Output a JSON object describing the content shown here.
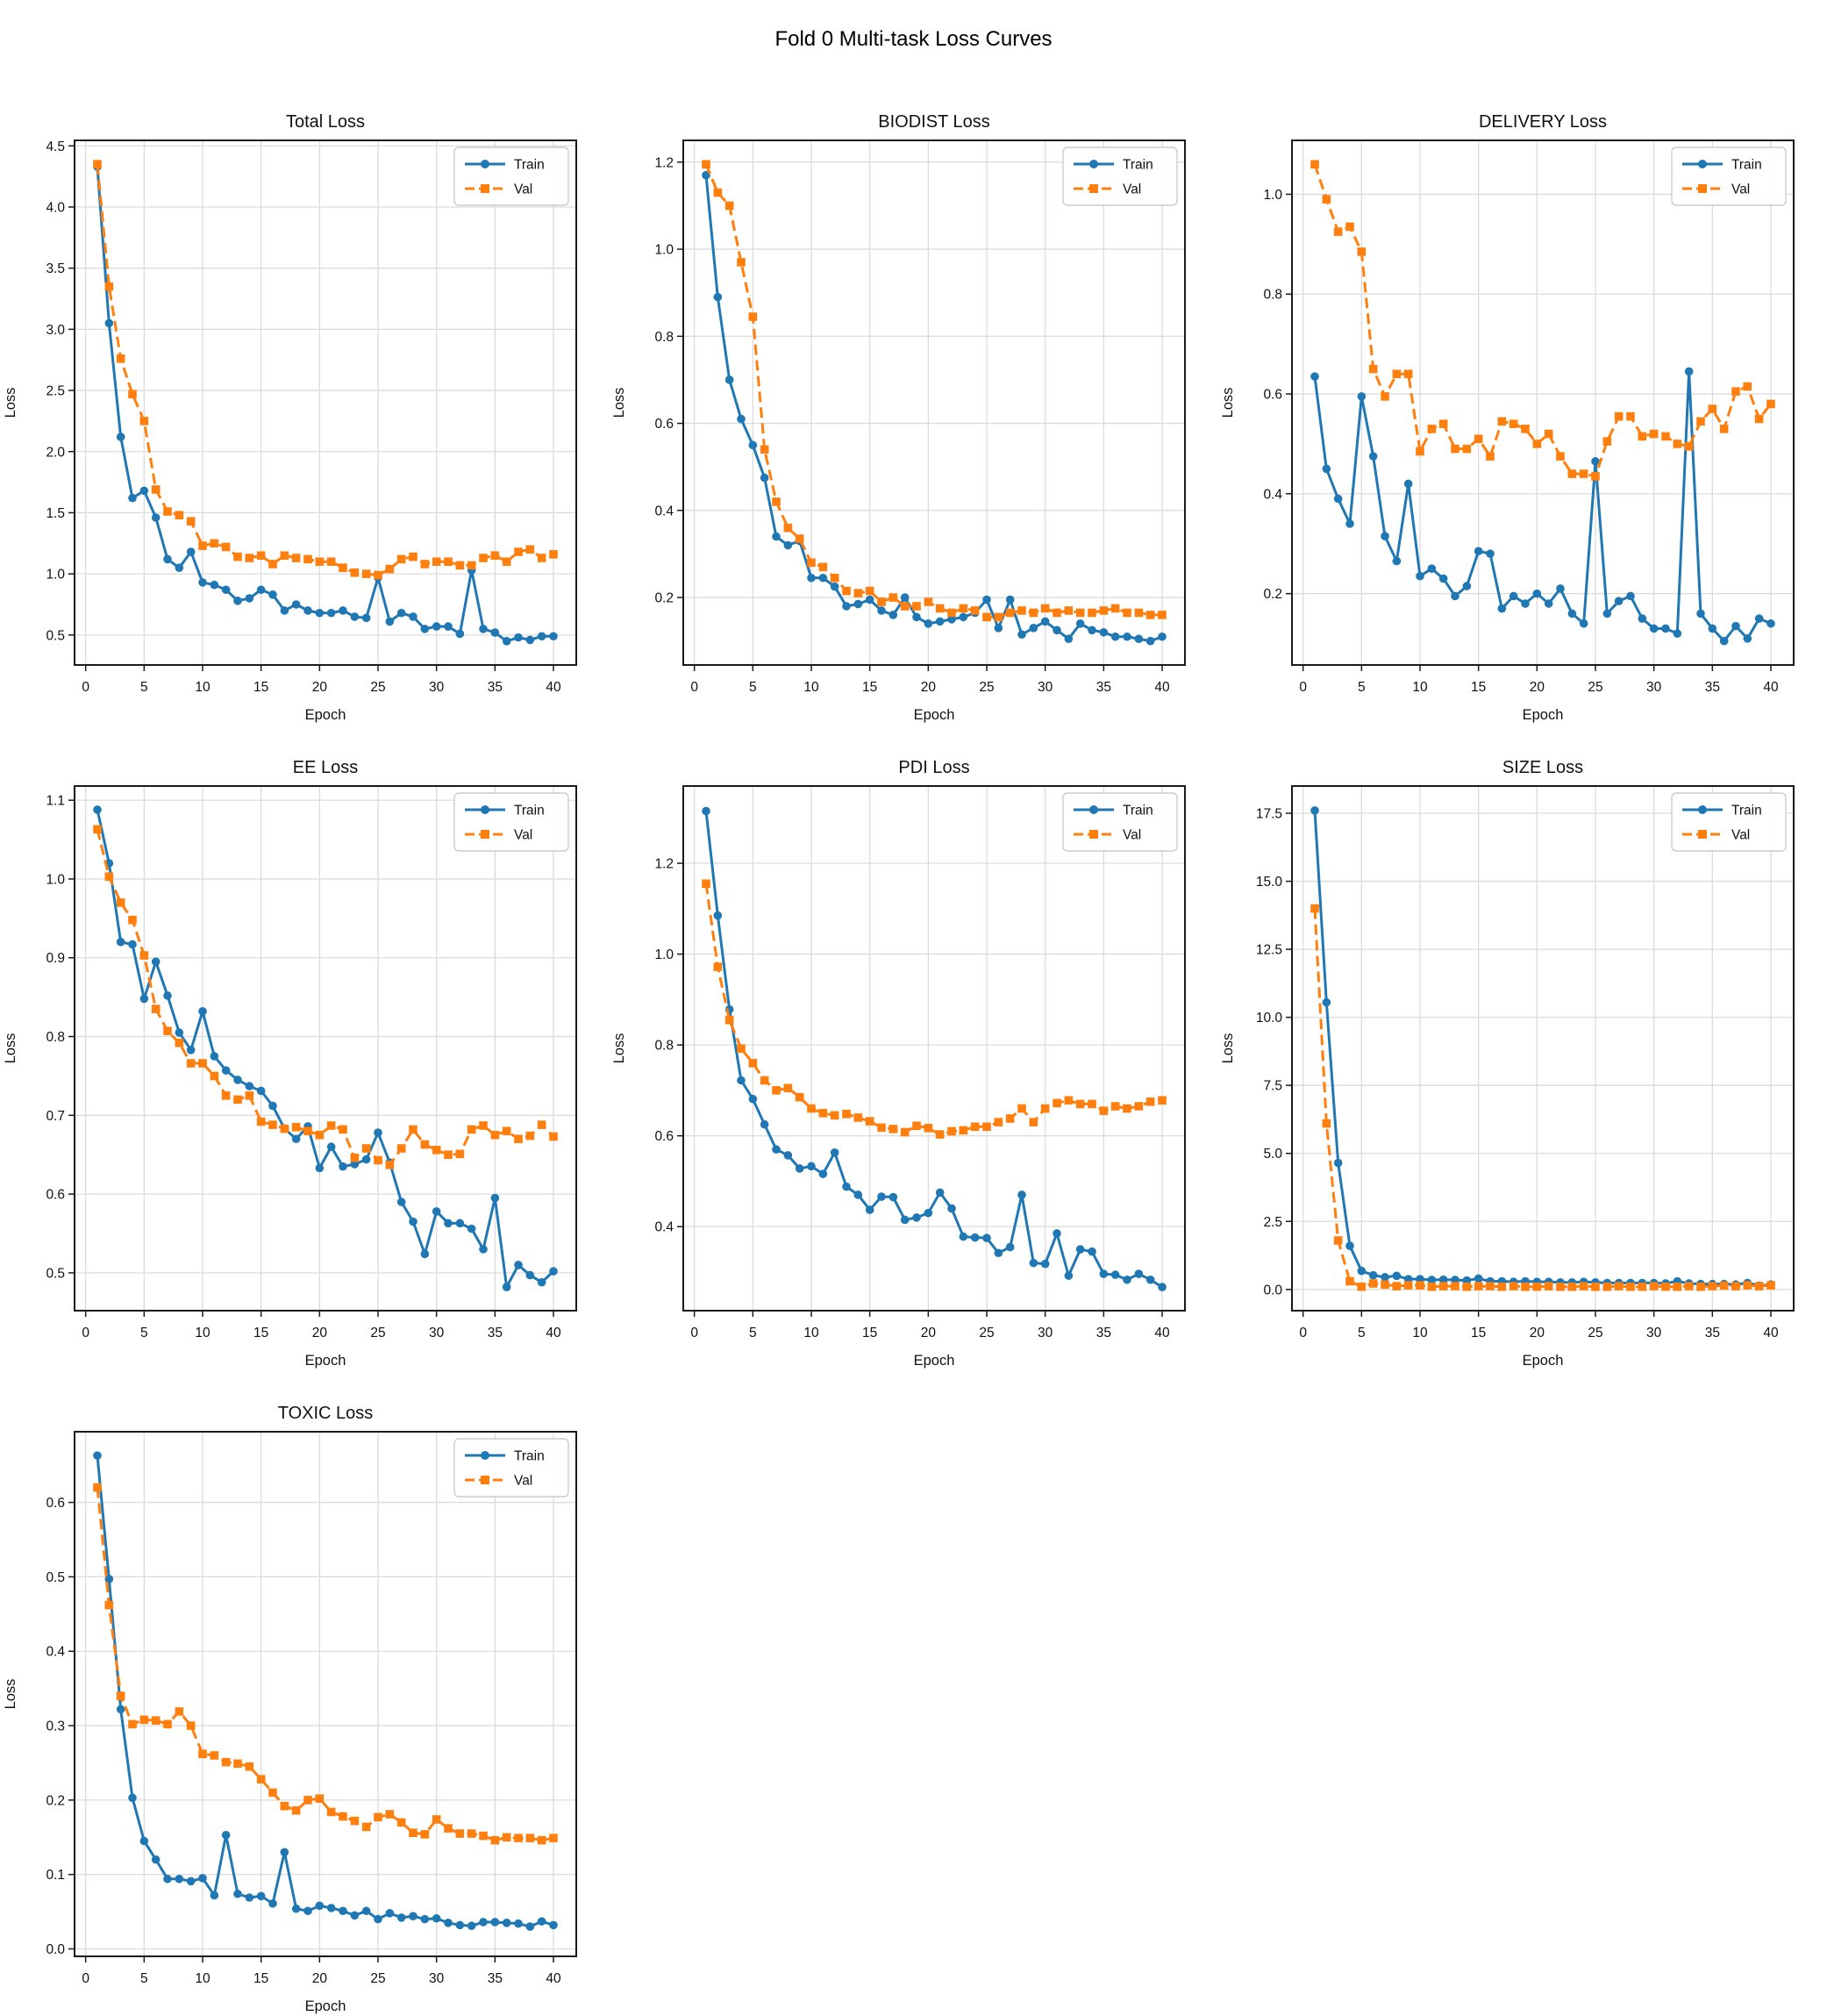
{
  "figure": {
    "suptitle": "Fold 0 Multi-task Loss Curves"
  },
  "colors": {
    "train": "#1f77b4",
    "val": "#ff7f0e",
    "grid": "#dcdcdc",
    "frame": "#1a1a1a"
  },
  "chart_data": {
    "type": "line",
    "x_label": "Epoch",
    "y_label": "Loss",
    "grid": true,
    "x": [
      1,
      2,
      3,
      4,
      5,
      6,
      7,
      8,
      9,
      10,
      11,
      12,
      13,
      14,
      15,
      16,
      17,
      18,
      19,
      20,
      21,
      22,
      23,
      24,
      25,
      26,
      27,
      28,
      29,
      30,
      31,
      32,
      33,
      34,
      35,
      36,
      37,
      38,
      39,
      40
    ],
    "x_ticks": [
      0,
      5,
      10,
      15,
      20,
      25,
      30,
      35,
      40
    ],
    "x_lim": [
      -0.95,
      41.95
    ],
    "legend": {
      "position": "upper right",
      "entries": [
        {
          "label": "Train",
          "color": "#1f77b4",
          "marker": "circle",
          "line": "solid"
        },
        {
          "label": "Val",
          "color": "#ff7f0e",
          "marker": "square",
          "line": "dashed"
        }
      ]
    },
    "charts": [
      {
        "title": "Total Loss",
        "slug": "total-loss",
        "y_ticks": [
          0.5,
          1.0,
          1.5,
          2.0,
          2.5,
          3.0,
          3.5,
          4.0,
          4.5
        ],
        "y_lim": [
          0.255,
          4.545
        ],
        "train": [
          4.33,
          3.05,
          2.12,
          1.62,
          1.68,
          1.46,
          1.12,
          1.05,
          1.18,
          0.93,
          0.91,
          0.87,
          0.78,
          0.8,
          0.87,
          0.83,
          0.7,
          0.75,
          0.7,
          0.68,
          0.68,
          0.7,
          0.65,
          0.64,
          0.97,
          0.61,
          0.68,
          0.65,
          0.55,
          0.57,
          0.57,
          0.51,
          1.03,
          0.55,
          0.52,
          0.45,
          0.48,
          0.46,
          0.49,
          0.49
        ],
        "val": [
          4.35,
          3.35,
          2.76,
          2.47,
          2.25,
          1.69,
          1.51,
          1.48,
          1.43,
          1.23,
          1.25,
          1.22,
          1.14,
          1.13,
          1.15,
          1.08,
          1.15,
          1.13,
          1.12,
          1.1,
          1.1,
          1.05,
          1.01,
          1.0,
          0.99,
          1.04,
          1.12,
          1.14,
          1.08,
          1.1,
          1.1,
          1.07,
          1.07,
          1.13,
          1.15,
          1.1,
          1.18,
          1.2,
          1.13,
          1.16
        ]
      },
      {
        "title": "BIODIST Loss",
        "slug": "biodist-loss",
        "y_ticks": [
          0.2,
          0.4,
          0.6,
          0.8,
          1.0,
          1.2
        ],
        "y_lim": [
          0.045,
          1.25
        ],
        "train": [
          1.17,
          0.89,
          0.7,
          0.61,
          0.55,
          0.475,
          0.34,
          0.32,
          0.33,
          0.245,
          0.245,
          0.225,
          0.18,
          0.185,
          0.195,
          0.17,
          0.16,
          0.2,
          0.155,
          0.14,
          0.145,
          0.15,
          0.155,
          0.165,
          0.195,
          0.13,
          0.195,
          0.115,
          0.13,
          0.145,
          0.125,
          0.105,
          0.14,
          0.125,
          0.12,
          0.11,
          0.11,
          0.105,
          0.1,
          0.11
        ],
        "val": [
          1.195,
          1.13,
          1.1,
          0.97,
          0.845,
          0.54,
          0.42,
          0.36,
          0.335,
          0.28,
          0.27,
          0.245,
          0.215,
          0.21,
          0.215,
          0.19,
          0.2,
          0.18,
          0.18,
          0.19,
          0.175,
          0.165,
          0.175,
          0.17,
          0.155,
          0.155,
          0.165,
          0.17,
          0.165,
          0.175,
          0.165,
          0.17,
          0.165,
          0.165,
          0.17,
          0.175,
          0.165,
          0.165,
          0.16,
          0.16
        ]
      },
      {
        "title": "DELIVERY Loss",
        "slug": "delivery-loss",
        "y_ticks": [
          0.2,
          0.4,
          0.6,
          0.8,
          1.0
        ],
        "y_lim": [
          0.057,
          1.108
        ],
        "train": [
          0.635,
          0.45,
          0.39,
          0.34,
          0.595,
          0.475,
          0.315,
          0.265,
          0.42,
          0.235,
          0.25,
          0.23,
          0.195,
          0.215,
          0.285,
          0.28,
          0.17,
          0.195,
          0.18,
          0.2,
          0.18,
          0.21,
          0.16,
          0.14,
          0.465,
          0.16,
          0.185,
          0.195,
          0.15,
          0.13,
          0.13,
          0.12,
          0.645,
          0.16,
          0.13,
          0.105,
          0.135,
          0.11,
          0.15,
          0.14
        ],
        "val": [
          1.06,
          0.99,
          0.925,
          0.935,
          0.885,
          0.65,
          0.595,
          0.64,
          0.64,
          0.485,
          0.53,
          0.54,
          0.49,
          0.49,
          0.51,
          0.475,
          0.545,
          0.54,
          0.53,
          0.5,
          0.52,
          0.475,
          0.44,
          0.44,
          0.435,
          0.505,
          0.555,
          0.555,
          0.515,
          0.52,
          0.515,
          0.5,
          0.495,
          0.545,
          0.57,
          0.53,
          0.605,
          0.615,
          0.55,
          0.58
        ]
      },
      {
        "title": "EE Loss",
        "slug": "ee-loss",
        "y_ticks": [
          0.5,
          0.6,
          0.7,
          0.8,
          0.9,
          1.0,
          1.1
        ],
        "y_lim": [
          0.452,
          1.118
        ],
        "train": [
          1.088,
          1.02,
          0.92,
          0.917,
          0.848,
          0.895,
          0.852,
          0.805,
          0.783,
          0.832,
          0.775,
          0.757,
          0.745,
          0.737,
          0.731,
          0.712,
          0.683,
          0.67,
          0.686,
          0.633,
          0.66,
          0.635,
          0.638,
          0.644,
          0.678,
          0.64,
          0.59,
          0.565,
          0.524,
          0.578,
          0.563,
          0.563,
          0.556,
          0.53,
          0.595,
          0.482,
          0.51,
          0.497,
          0.488,
          0.502
        ],
        "val": [
          1.063,
          1.003,
          0.97,
          0.948,
          0.903,
          0.835,
          0.807,
          0.792,
          0.766,
          0.766,
          0.75,
          0.725,
          0.72,
          0.725,
          0.692,
          0.688,
          0.683,
          0.685,
          0.68,
          0.675,
          0.687,
          0.682,
          0.646,
          0.658,
          0.643,
          0.637,
          0.658,
          0.682,
          0.663,
          0.656,
          0.65,
          0.651,
          0.682,
          0.687,
          0.675,
          0.68,
          0.67,
          0.674,
          0.688,
          0.673
        ]
      },
      {
        "title": "PDI Loss",
        "slug": "pdi-loss",
        "y_ticks": [
          0.4,
          0.6,
          0.8,
          1.0,
          1.2
        ],
        "y_lim": [
          0.215,
          1.37
        ],
        "train": [
          1.315,
          1.085,
          0.878,
          0.722,
          0.681,
          0.625,
          0.57,
          0.557,
          0.528,
          0.533,
          0.516,
          0.563,
          0.488,
          0.47,
          0.437,
          0.466,
          0.465,
          0.415,
          0.42,
          0.43,
          0.475,
          0.44,
          0.378,
          0.376,
          0.375,
          0.342,
          0.355,
          0.47,
          0.32,
          0.318,
          0.385,
          0.292,
          0.35,
          0.345,
          0.296,
          0.294,
          0.283,
          0.296,
          0.283,
          0.267
        ],
        "val": [
          1.155,
          0.972,
          0.855,
          0.792,
          0.76,
          0.722,
          0.7,
          0.705,
          0.685,
          0.66,
          0.65,
          0.645,
          0.648,
          0.64,
          0.632,
          0.618,
          0.615,
          0.608,
          0.622,
          0.617,
          0.603,
          0.61,
          0.612,
          0.62,
          0.62,
          0.63,
          0.638,
          0.66,
          0.63,
          0.66,
          0.672,
          0.678,
          0.67,
          0.67,
          0.655,
          0.665,
          0.66,
          0.665,
          0.675,
          0.678
        ]
      },
      {
        "title": "SIZE Loss",
        "slug": "size-loss",
        "y_ticks": [
          0.0,
          2.5,
          5.0,
          7.5,
          10.0,
          12.5,
          15.0,
          17.5
        ],
        "y_lim": [
          -0.78,
          18.5
        ],
        "train": [
          17.6,
          10.55,
          4.65,
          1.6,
          0.68,
          0.52,
          0.45,
          0.5,
          0.38,
          0.38,
          0.35,
          0.36,
          0.35,
          0.33,
          0.4,
          0.3,
          0.3,
          0.28,
          0.3,
          0.28,
          0.28,
          0.26,
          0.26,
          0.28,
          0.26,
          0.24,
          0.24,
          0.24,
          0.24,
          0.24,
          0.22,
          0.3,
          0.22,
          0.2,
          0.2,
          0.2,
          0.18,
          0.24,
          0.14,
          0.18
        ],
        "val": [
          14.0,
          6.1,
          1.8,
          0.3,
          0.1,
          0.22,
          0.18,
          0.12,
          0.15,
          0.15,
          0.1,
          0.12,
          0.12,
          0.1,
          0.12,
          0.12,
          0.1,
          0.12,
          0.1,
          0.1,
          0.12,
          0.1,
          0.1,
          0.12,
          0.1,
          0.1,
          0.12,
          0.1,
          0.1,
          0.12,
          0.1,
          0.1,
          0.12,
          0.1,
          0.12,
          0.14,
          0.12,
          0.15,
          0.12,
          0.15
        ]
      },
      {
        "title": "TOXIC Loss",
        "slug": "toxic-loss",
        "y_ticks": [
          0.0,
          0.1,
          0.2,
          0.3,
          0.4,
          0.5,
          0.6
        ],
        "y_lim": [
          -0.01,
          0.695
        ],
        "train": [
          0.663,
          0.497,
          0.322,
          0.203,
          0.145,
          0.12,
          0.094,
          0.094,
          0.091,
          0.095,
          0.072,
          0.153,
          0.074,
          0.069,
          0.071,
          0.061,
          0.13,
          0.054,
          0.051,
          0.058,
          0.055,
          0.051,
          0.045,
          0.051,
          0.04,
          0.048,
          0.042,
          0.044,
          0.04,
          0.041,
          0.035,
          0.032,
          0.031,
          0.036,
          0.036,
          0.035,
          0.034,
          0.03,
          0.037,
          0.032
        ],
        "val": [
          0.62,
          0.462,
          0.34,
          0.302,
          0.308,
          0.307,
          0.302,
          0.319,
          0.3,
          0.262,
          0.26,
          0.251,
          0.249,
          0.245,
          0.228,
          0.21,
          0.192,
          0.186,
          0.2,
          0.202,
          0.184,
          0.178,
          0.172,
          0.164,
          0.177,
          0.181,
          0.17,
          0.156,
          0.154,
          0.174,
          0.162,
          0.155,
          0.155,
          0.152,
          0.146,
          0.15,
          0.149,
          0.149,
          0.146,
          0.149
        ]
      }
    ]
  }
}
